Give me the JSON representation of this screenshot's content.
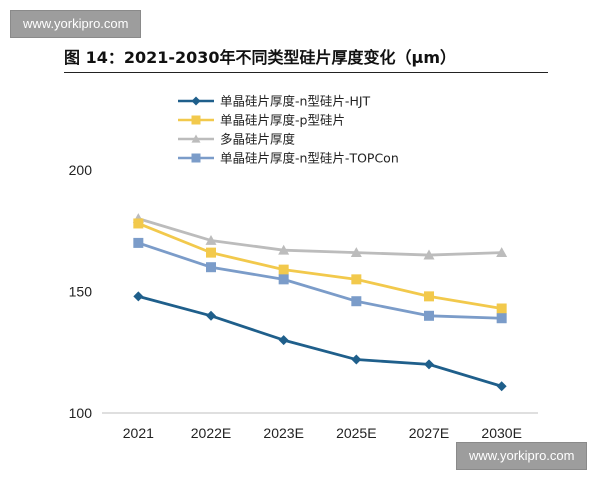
{
  "watermark_top": "www.yorkipro.com",
  "watermark_bottom": "www.yorkipro.com",
  "chart_data": {
    "type": "line",
    "title": "图 14：2021-2030年不同类型硅片厚度变化（μm）",
    "xlabel": "",
    "ylabel": "",
    "categories": [
      "2021",
      "2022E",
      "2023E",
      "2025E",
      "2027E",
      "2030E"
    ],
    "ylim": [
      100,
      200
    ],
    "yticks": [
      100,
      150,
      200
    ],
    "grid": false,
    "legend_position": "top-left",
    "series": [
      {
        "name": "单晶硅片厚度-n型硅片-HJT",
        "color": "#1f5f8b",
        "marker": "diamond",
        "values": [
          148,
          140,
          130,
          122,
          120,
          111
        ]
      },
      {
        "name": "单晶硅片厚度-p型硅片",
        "color": "#f2c94c",
        "marker": "square",
        "values": [
          178,
          166,
          159,
          155,
          148,
          143
        ]
      },
      {
        "name": "多晶硅片厚度",
        "color": "#bcbcbc",
        "marker": "triangle",
        "values": [
          180,
          171,
          167,
          166,
          165,
          166
        ]
      },
      {
        "name": "单晶硅片厚度-n型硅片-TOPCon",
        "color": "#7b9cc9",
        "marker": "square",
        "values": [
          170,
          160,
          155,
          146,
          140,
          139
        ]
      }
    ]
  }
}
